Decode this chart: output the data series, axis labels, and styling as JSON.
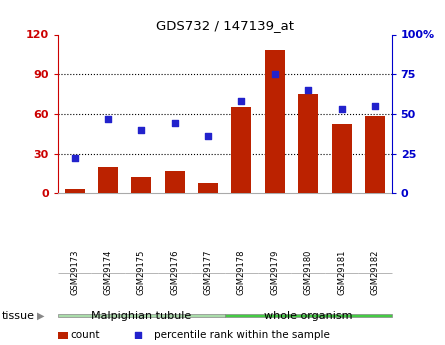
{
  "title": "GDS732 / 147139_at",
  "categories": [
    "GSM29173",
    "GSM29174",
    "GSM29175",
    "GSM29176",
    "GSM29177",
    "GSM29178",
    "GSM29179",
    "GSM29180",
    "GSM29181",
    "GSM29182"
  ],
  "counts": [
    3,
    20,
    12,
    17,
    8,
    65,
    108,
    75,
    52,
    58
  ],
  "percentiles": [
    22,
    47,
    40,
    44,
    36,
    58,
    75,
    65,
    53,
    55
  ],
  "bar_color": "#bb2200",
  "dot_color": "#2222cc",
  "tissue_groups": [
    {
      "label": "Malpighian tubule",
      "start": 0,
      "end": 5,
      "color": "#aaddaa"
    },
    {
      "label": "whole organism",
      "start": 5,
      "end": 10,
      "color": "#44cc44"
    }
  ],
  "ylim_left": [
    0,
    120
  ],
  "ylim_right": [
    0,
    100
  ],
  "yticks_left": [
    0,
    30,
    60,
    90,
    120
  ],
  "ytick_labels_left": [
    "0",
    "30",
    "60",
    "90",
    "120"
  ],
  "yticks_right": [
    0,
    25,
    50,
    75,
    100
  ],
  "ytick_labels_right": [
    "0",
    "25",
    "50",
    "75",
    "100%"
  ],
  "left_axis_color": "#cc0000",
  "right_axis_color": "#0000cc",
  "bg_color": "#ffffff",
  "legend_count_label": "count",
  "legend_pct_label": "percentile rank within the sample",
  "tissue_label": "tissue",
  "tick_bg_color": "#cccccc",
  "tick_edge_color": "#999999",
  "tissue_edge_color": "#888888"
}
